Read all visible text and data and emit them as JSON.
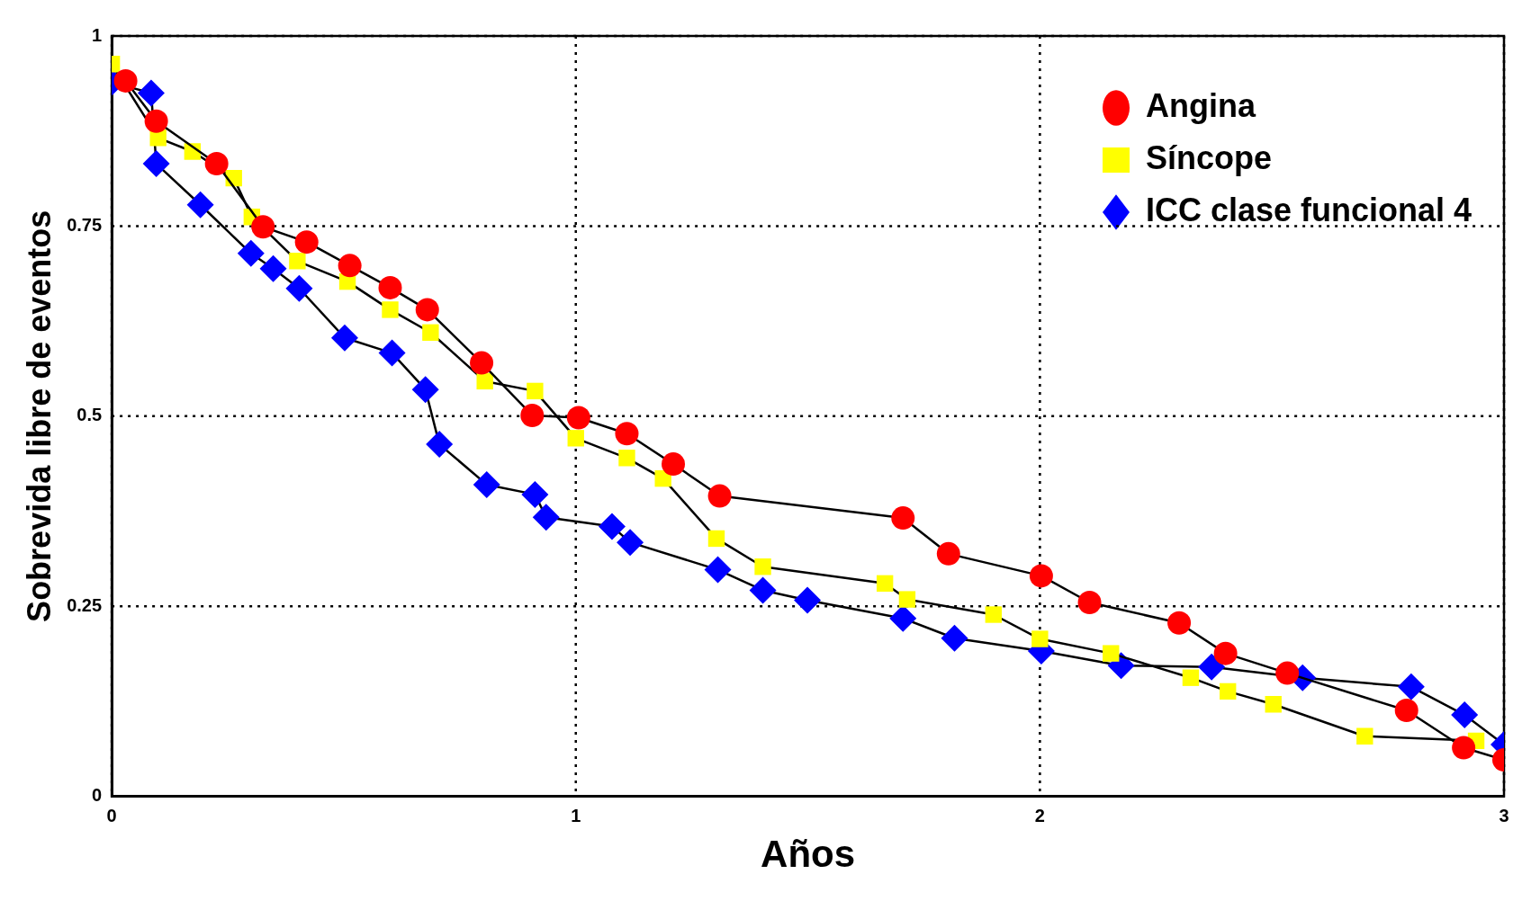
{
  "chart_data": {
    "type": "line",
    "xlabel": "Años",
    "ylabel": "Sobrevida libre de eventos",
    "xlim": [
      0,
      3
    ],
    "xticks": [
      0,
      1,
      2,
      3
    ],
    "ylim": [
      0,
      1
    ],
    "yticks": [
      0,
      0.25,
      0.5,
      0.75,
      1
    ],
    "grid": true,
    "legend": "top right",
    "line_style": "solid",
    "series": [
      {
        "name": "Angina",
        "color": "#ff0000",
        "marker": "circle",
        "x": [
          0.03,
          0.096,
          0.226,
          0.326,
          0.42,
          0.513,
          0.6,
          0.68,
          0.797,
          0.906,
          1.006,
          1.11,
          1.21,
          1.31,
          1.705,
          1.803,
          2.003,
          2.107,
          2.3,
          2.4,
          2.533,
          2.79,
          2.913,
          3.0
        ],
        "values": [
          0.941,
          0.888,
          0.832,
          0.749,
          0.729,
          0.698,
          0.669,
          0.64,
          0.57,
          0.501,
          0.498,
          0.477,
          0.437,
          0.395,
          0.366,
          0.319,
          0.29,
          0.255,
          0.228,
          0.188,
          0.162,
          0.113,
          0.064,
          0.048
        ]
      },
      {
        "name": "Síncope",
        "color": "#ffff00",
        "marker": "square",
        "x": [
          0,
          0.1,
          0.174,
          0.263,
          0.302,
          0.4,
          0.508,
          0.6,
          0.687,
          0.804,
          0.912,
          1.0,
          1.11,
          1.188,
          1.303,
          1.403,
          1.666,
          1.714,
          1.9,
          2.0,
          2.153,
          2.325,
          2.405,
          2.503,
          2.7,
          2.94
        ],
        "values": [
          0.963,
          0.866,
          0.848,
          0.813,
          0.762,
          0.704,
          0.677,
          0.64,
          0.61,
          0.546,
          0.533,
          0.471,
          0.445,
          0.418,
          0.339,
          0.302,
          0.28,
          0.259,
          0.239,
          0.207,
          0.188,
          0.156,
          0.138,
          0.121,
          0.079,
          0.073
        ]
      },
      {
        "name": "ICC clase funcional 4",
        "color": "#0000ff",
        "marker": "diamond",
        "x": [
          0,
          0.085,
          0.096,
          0.191,
          0.3,
          0.348,
          0.404,
          0.502,
          0.604,
          0.676,
          0.706,
          0.808,
          0.912,
          0.936,
          1.078,
          1.117,
          1.306,
          1.403,
          1.499,
          1.705,
          1.816,
          2.003,
          2.175,
          2.37,
          2.566,
          2.8,
          2.915,
          3.0
        ],
        "values": [
          0.939,
          0.925,
          0.832,
          0.778,
          0.714,
          0.694,
          0.668,
          0.603,
          0.583,
          0.535,
          0.463,
          0.41,
          0.397,
          0.367,
          0.355,
          0.334,
          0.298,
          0.271,
          0.258,
          0.234,
          0.208,
          0.191,
          0.172,
          0.17,
          0.156,
          0.144,
          0.107,
          0.068
        ]
      }
    ]
  }
}
